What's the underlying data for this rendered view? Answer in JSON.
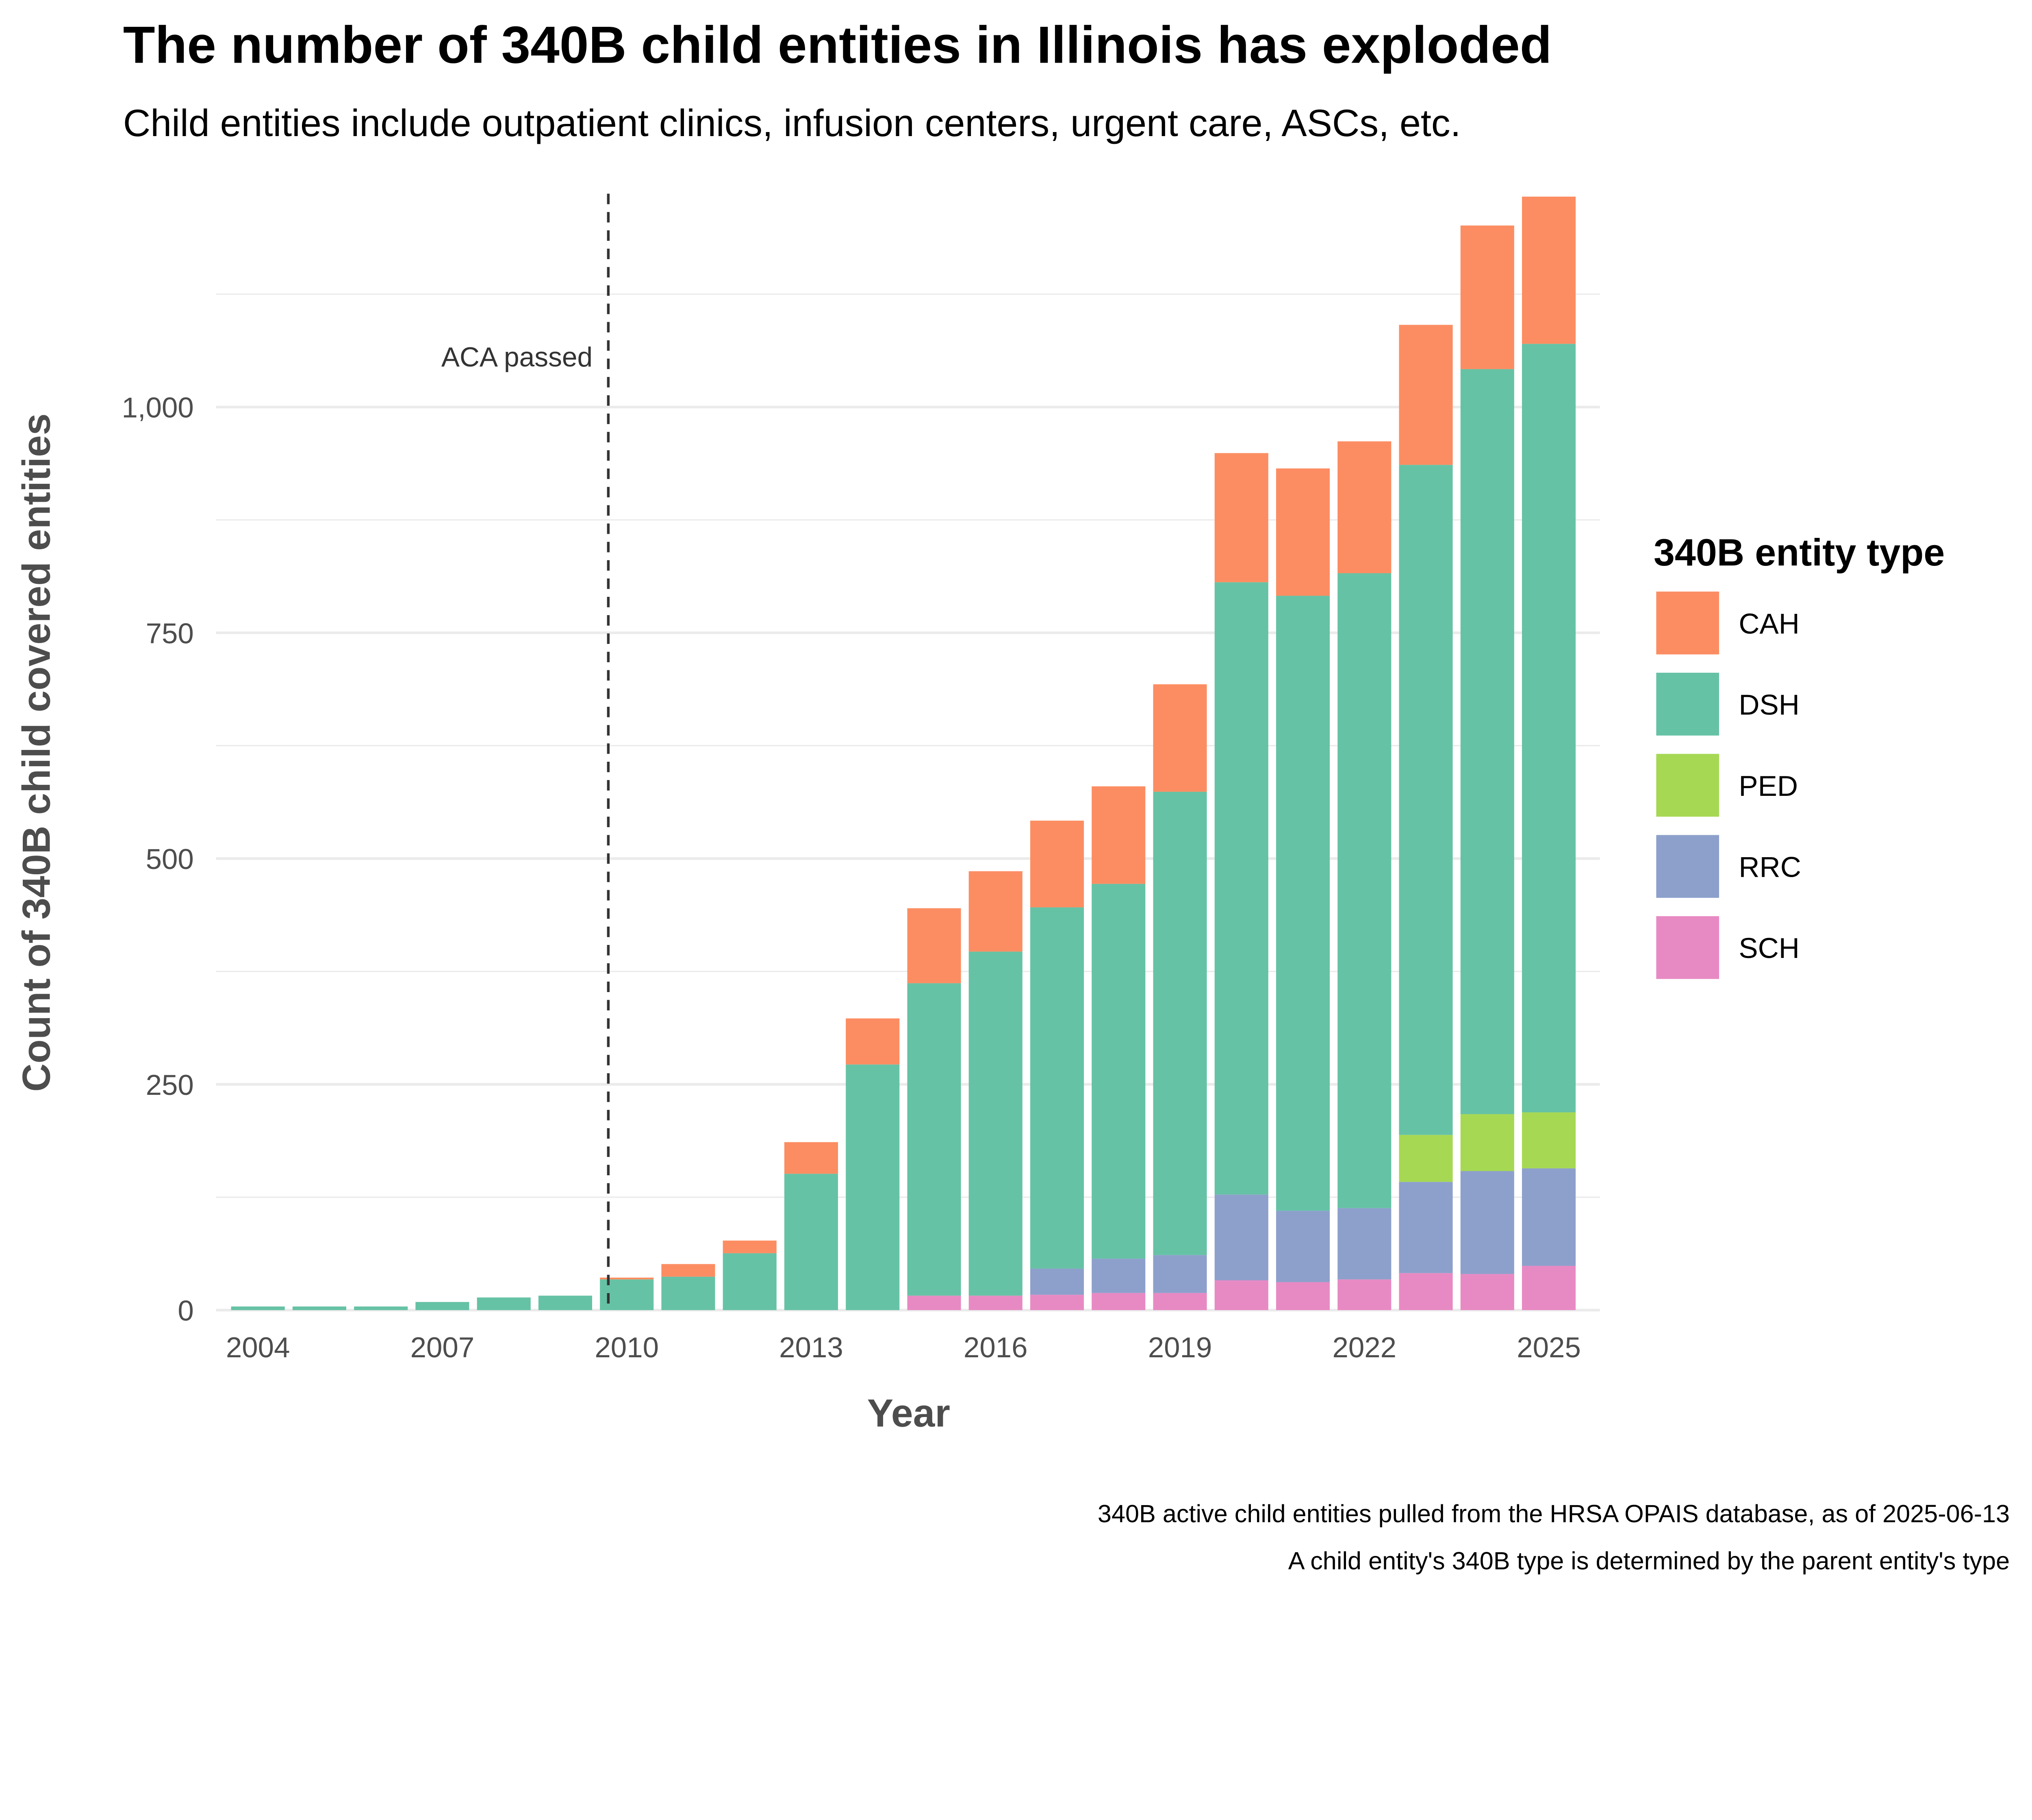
{
  "chart_data": {
    "type": "bar",
    "stacked": true,
    "title": "The number of 340B child entities in Illinois has exploded",
    "subtitle": "Child entities include outpatient clinics, infusion centers, urgent care, ASCs, etc.",
    "xlabel": "Year",
    "ylabel": "Count of 340B child covered entities",
    "ylim": [
      0,
      1240
    ],
    "yticks": [
      0,
      250,
      500,
      750,
      1000
    ],
    "ytick_labels": [
      "0",
      "250",
      "500",
      "750",
      "1,000"
    ],
    "xticks": [
      2004,
      2007,
      2010,
      2013,
      2016,
      2019,
      2022,
      2025
    ],
    "xtick_labels": [
      "2004",
      "2007",
      "2010",
      "2013",
      "2016",
      "2019",
      "2022",
      "2025"
    ],
    "grid": true,
    "legend_title": "340B entity type",
    "legend_position": "right",
    "categories": [
      2004,
      2005,
      2006,
      2007,
      2008,
      2009,
      2010,
      2011,
      2012,
      2013,
      2014,
      2015,
      2016,
      2017,
      2018,
      2019,
      2020,
      2021,
      2022,
      2023,
      2024,
      2025
    ],
    "series": [
      {
        "name": "SCH",
        "color": "#E78AC3",
        "values": [
          0,
          0,
          0,
          0,
          0,
          0,
          0,
          0,
          0,
          0,
          0,
          16,
          16,
          17,
          19,
          19,
          33,
          31,
          34,
          41,
          40,
          49
        ]
      },
      {
        "name": "RRC",
        "color": "#8DA0CB",
        "values": [
          0,
          0,
          0,
          0,
          0,
          0,
          0,
          0,
          0,
          0,
          0,
          0,
          0,
          29,
          38,
          42,
          95,
          79,
          79,
          101,
          114,
          108
        ]
      },
      {
        "name": "PED",
        "color": "#A6D854",
        "values": [
          0,
          0,
          0,
          0,
          0,
          0,
          0,
          0,
          0,
          0,
          0,
          0,
          0,
          0,
          0,
          0,
          0,
          0,
          0,
          52,
          63,
          62
        ]
      },
      {
        "name": "DSH",
        "color": "#66C2A5",
        "values": [
          4,
          4,
          4,
          9,
          14,
          16,
          34,
          37,
          63,
          151,
          272,
          346,
          381,
          400,
          415,
          513,
          678,
          681,
          703,
          742,
          825,
          851
        ]
      },
      {
        "name": "CAH",
        "color": "#FC8D62",
        "values": [
          0,
          0,
          0,
          0,
          0,
          0,
          2,
          14,
          14,
          35,
          51,
          83,
          89,
          96,
          108,
          119,
          143,
          141,
          146,
          155,
          159,
          163
        ]
      }
    ],
    "legend_order": [
      "CAH",
      "DSH",
      "PED",
      "RRC",
      "SCH"
    ],
    "annotations": [
      {
        "text": "ACA passed",
        "x": 2009.7,
        "type": "vline-dashed"
      }
    ],
    "caption": [
      "340B active child entities pulled from the HRSA OPAIS database, as of 2025-06-13",
      "A child entity's 340B type is determined by the parent entity's type"
    ]
  }
}
